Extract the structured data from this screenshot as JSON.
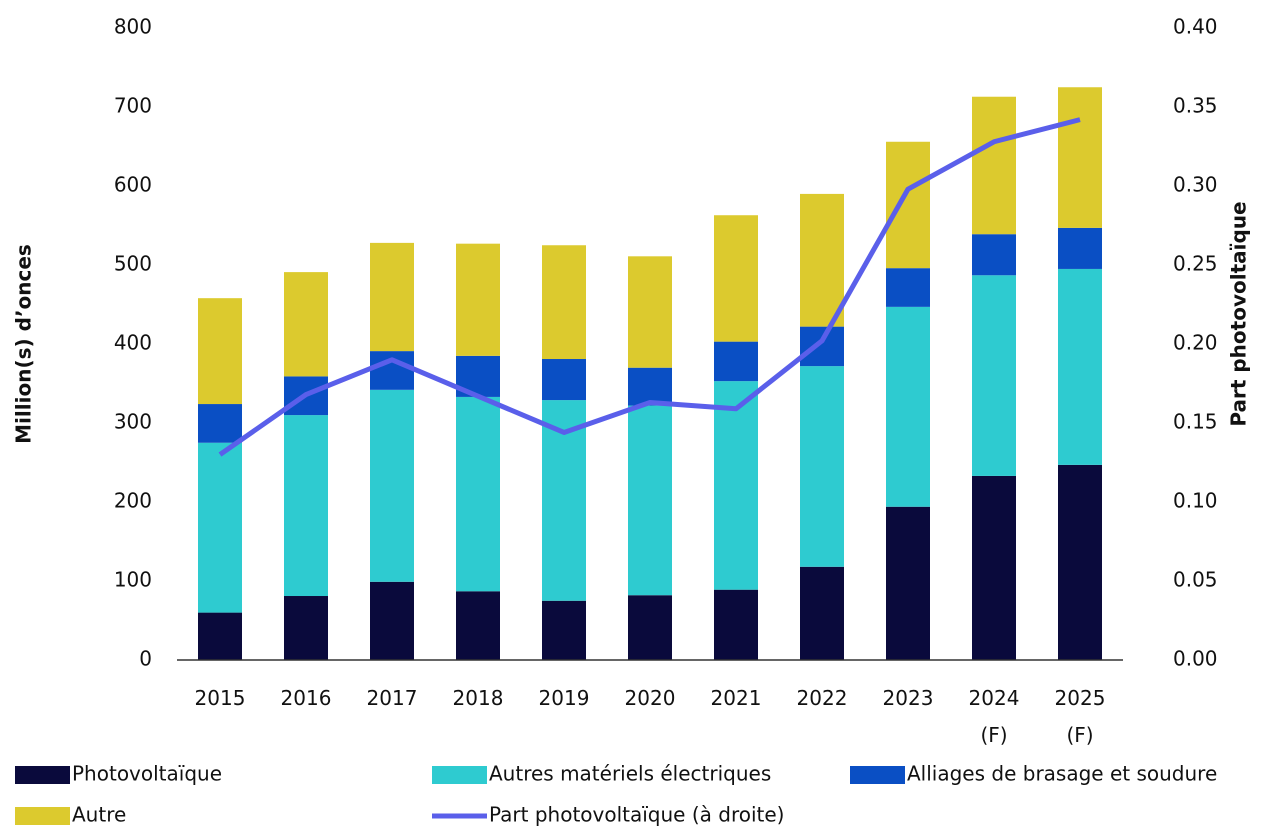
{
  "chart_data": {
    "type": "bar",
    "categories": [
      "2015",
      "2016",
      "2017",
      "2018",
      "2019",
      "2020",
      "2021",
      "2022",
      "2023",
      "2024\n(F)",
      "2025\n(F)"
    ],
    "ylabel": "Million(s) d’onces",
    "y2label": "Part photovoltaïque",
    "ylim": [
      0,
      800
    ],
    "yticks": [
      0,
      100,
      200,
      300,
      400,
      500,
      600,
      700,
      800
    ],
    "y2lim": [
      0,
      0.4
    ],
    "y2ticks": [
      {
        "value": 0,
        "label": "0.00"
      },
      {
        "value": 0.05,
        "label": "0.05"
      },
      {
        "value": 0.1,
        "label": "0.10"
      },
      {
        "value": 0.15,
        "label": "0.15"
      },
      {
        "value": 0.2,
        "label": "0.20"
      },
      {
        "value": 0.25,
        "label": "0.25"
      },
      {
        "value": 0.3,
        "label": "0.30"
      },
      {
        "value": 0.35,
        "label": "0.35"
      },
      {
        "value": 0.4,
        "label": "0.40"
      }
    ],
    "stacked": true,
    "series": [
      {
        "name": "Photovoltaïque",
        "color": "#0a0a3c",
        "values": [
          60,
          81,
          99,
          87,
          75,
          82,
          89,
          118,
          194,
          233,
          247
        ]
      },
      {
        "name": "Autres matériels électriques",
        "color": "#2ecbd0",
        "values": [
          215,
          229,
          243,
          246,
          254,
          240,
          264,
          254,
          253,
          254,
          248
        ]
      },
      {
        "name": "Alliages de brasage et soudure",
        "color": "#0a4fc4",
        "values": [
          49,
          49,
          49,
          52,
          52,
          48,
          50,
          50,
          49,
          52,
          52
        ]
      },
      {
        "name": "Autre",
        "color": "#dcca2e",
        "values": [
          134,
          132,
          137,
          142,
          144,
          141,
          160,
          168,
          160,
          174,
          178
        ]
      },
      {
        "name": "Part photovoltaïque (à droite)",
        "color": "#5a5fea",
        "type": "line",
        "axis": "y2",
        "values": [
          0.13,
          0.168,
          0.19,
          0.167,
          0.144,
          0.163,
          0.159,
          0.202,
          0.298,
          0.328,
          0.342
        ]
      }
    ]
  }
}
